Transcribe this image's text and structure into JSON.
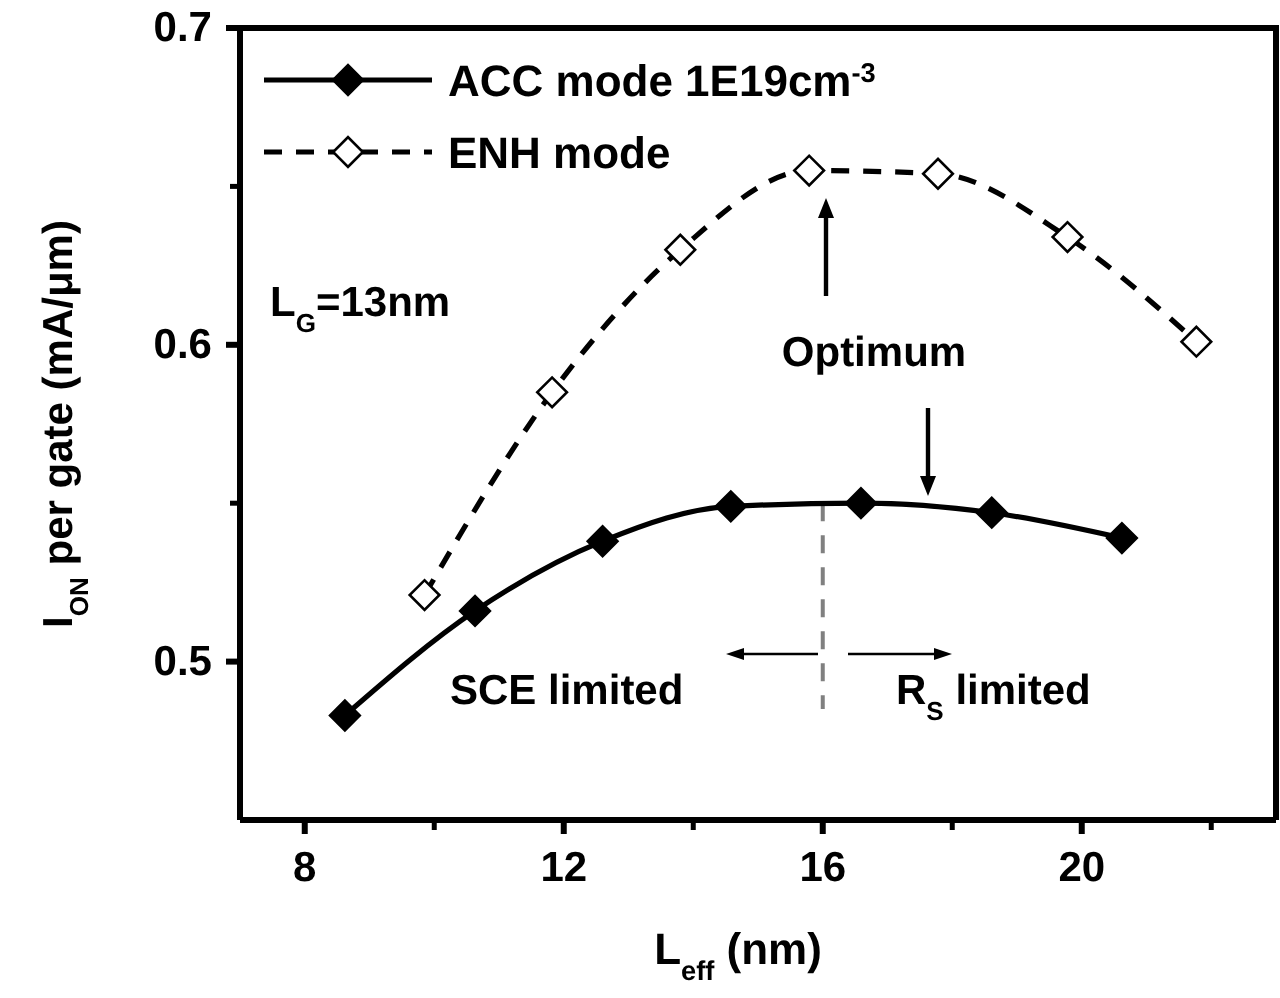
{
  "chart_data": {
    "type": "line",
    "xlabel": "L$_{eff}$ (nm)",
    "ylabel": "I$_{ON}$ per gate (mA/μm)",
    "xlim": [
      7,
      23
    ],
    "xticks": [
      8,
      12,
      16,
      20
    ],
    "ylim": [
      0.45,
      0.7
    ],
    "yticks": [
      0.5,
      0.6,
      0.7
    ],
    "legend": "top left",
    "marker": "diamond",
    "series": [
      {
        "name": "ACC mode 1E19cm$^{-3}$",
        "color": "#000000",
        "line_style": "solid",
        "x": [
          8.62,
          10.63,
          12.6,
          14.58,
          16.59,
          18.61,
          20.62
        ],
        "values": [
          0.483,
          0.516,
          0.538,
          0.549,
          0.55,
          0.547,
          0.539
        ]
      },
      {
        "name": "ENH mode",
        "color": "#000000",
        "line_style": "dashed",
        "x": [
          9.85,
          11.82,
          13.8,
          15.79,
          17.78,
          19.78,
          21.77
        ],
        "values": [
          0.521,
          0.585,
          0.63,
          0.655,
          0.654,
          0.634,
          0.601
        ]
      }
    ],
    "ref_lines": [
      {
        "axis": "x",
        "value": 16,
        "color": "#808080",
        "line_style": "dashed"
      }
    ],
    "annotations": [
      "L$_{G}$=13nm",
      "Optimum",
      "SCE limited",
      "R$_{S}$ limited"
    ]
  }
}
